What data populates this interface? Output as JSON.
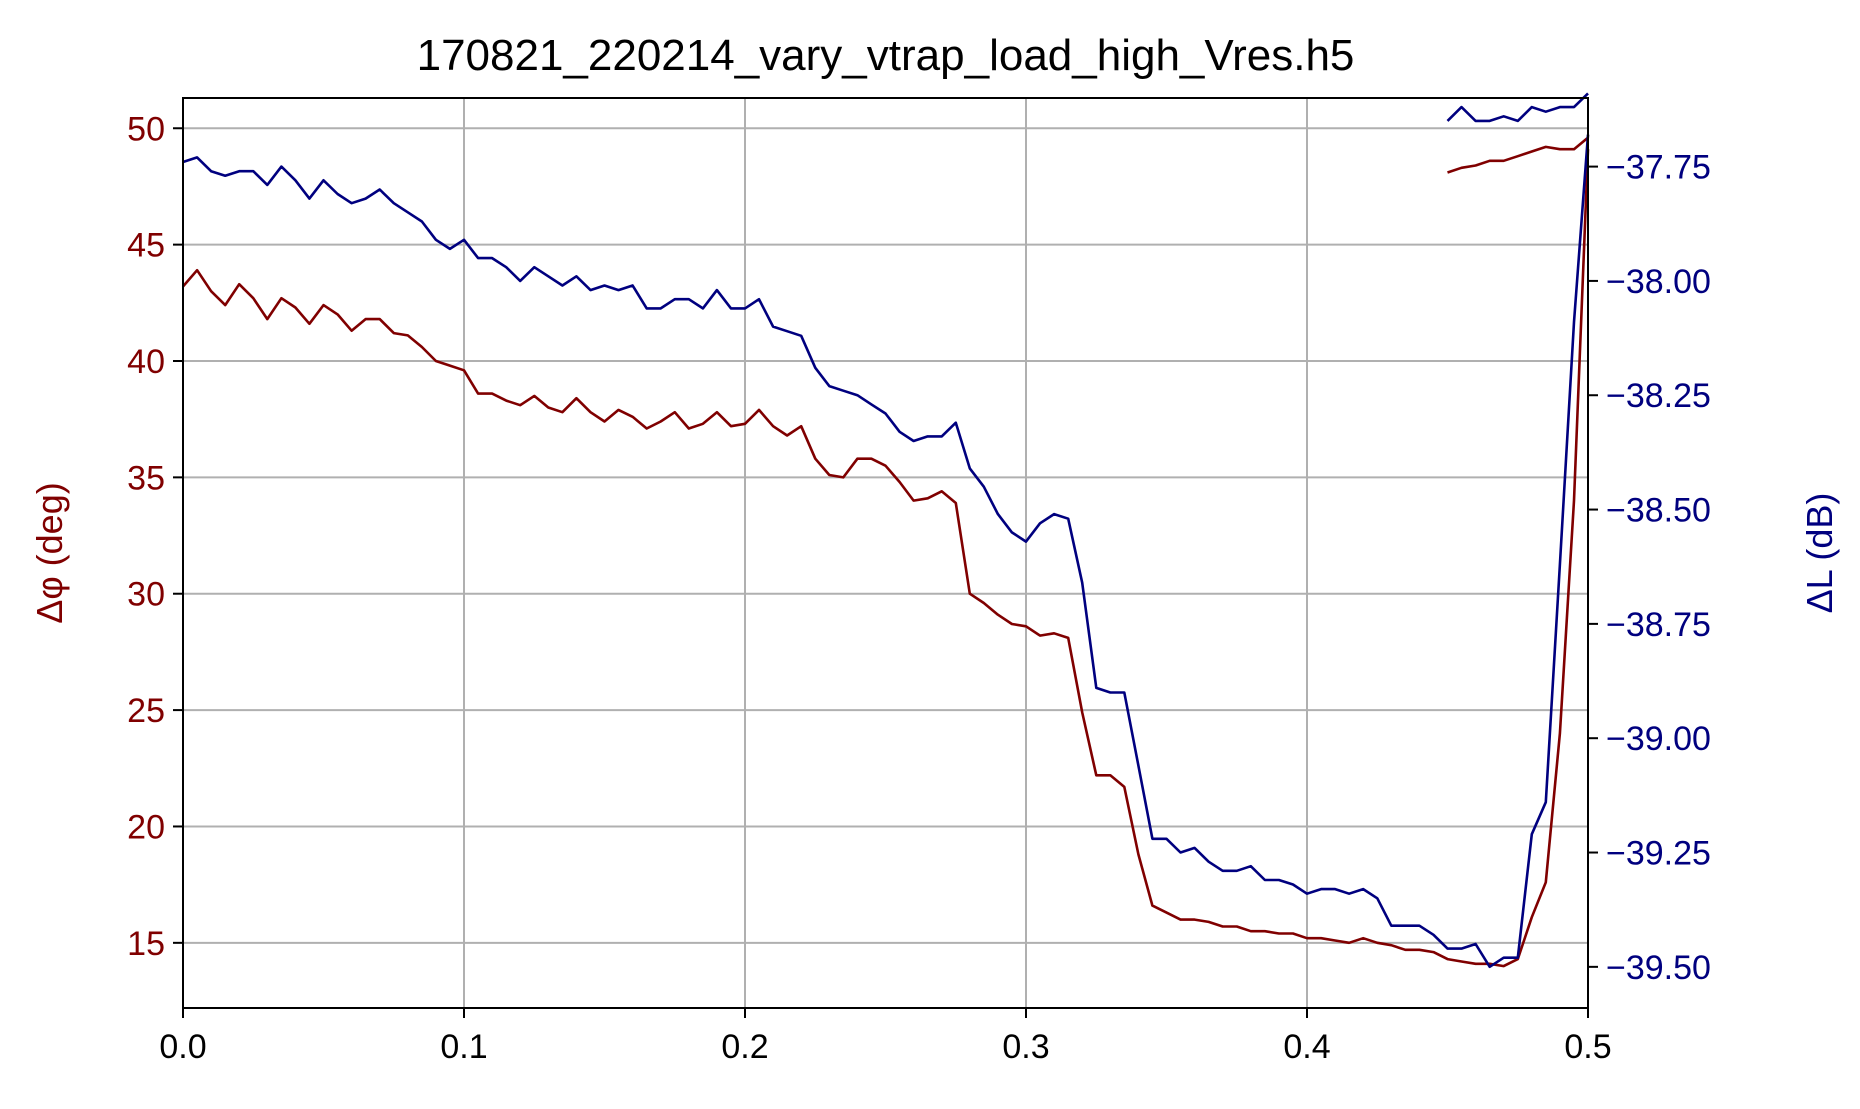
{
  "chart_data": {
    "type": "line",
    "title": "170821_220214_vary_vtrap_load_high_Vres.h5",
    "xlim": [
      0,
      0.5
    ],
    "xticks": [
      0.0,
      0.1,
      0.2,
      0.3,
      0.4,
      0.5
    ],
    "xtick_labels": [
      "0.0",
      "0.1",
      "0.2",
      "0.3",
      "0.4",
      "0.5"
    ],
    "grid": true,
    "left_axis": {
      "label": "Δφ (deg)",
      "color": "#800000",
      "ylim": [
        12.2,
        51.3
      ],
      "ticks": [
        15,
        20,
        25,
        30,
        35,
        40,
        45,
        50
      ],
      "tick_labels": [
        "15",
        "20",
        "25",
        "30",
        "35",
        "40",
        "45",
        "50"
      ]
    },
    "right_axis": {
      "label": "ΔL (dB)",
      "color": "#00007f",
      "ylim": [
        -39.59,
        -37.6
      ],
      "ticks": [
        -37.75,
        -38.0,
        -38.25,
        -38.5,
        -38.75,
        -39.0,
        -39.25,
        -39.5
      ],
      "tick_labels": [
        "−37.75",
        "−38.00",
        "−38.25",
        "−38.50",
        "−38.75",
        "−39.00",
        "−39.25",
        "−39.50"
      ]
    },
    "series": [
      {
        "axis": "left",
        "color": "#800000",
        "segments": [
          {
            "x": [
              0.0,
              0.005,
              0.01,
              0.015,
              0.02,
              0.025,
              0.03,
              0.035,
              0.04,
              0.045,
              0.05,
              0.055,
              0.06,
              0.065,
              0.07,
              0.075,
              0.08,
              0.085,
              0.09,
              0.095,
              0.1,
              0.105,
              0.11,
              0.115,
              0.12,
              0.125,
              0.13,
              0.135,
              0.14,
              0.145,
              0.15,
              0.155,
              0.16,
              0.165,
              0.17,
              0.175,
              0.18,
              0.185,
              0.19,
              0.195,
              0.2,
              0.205,
              0.21,
              0.215,
              0.22,
              0.225,
              0.23,
              0.235,
              0.24,
              0.245,
              0.25,
              0.255,
              0.26,
              0.265,
              0.27,
              0.275,
              0.28,
              0.285,
              0.29,
              0.295,
              0.3,
              0.305,
              0.31,
              0.315,
              0.32,
              0.325,
              0.33,
              0.335,
              0.34,
              0.345,
              0.35,
              0.355,
              0.36,
              0.365,
              0.37,
              0.375,
              0.38,
              0.385,
              0.39,
              0.395,
              0.4,
              0.405,
              0.41,
              0.415,
              0.42,
              0.425,
              0.43,
              0.435,
              0.44,
              0.445,
              0.45,
              0.455,
              0.46,
              0.465,
              0.47,
              0.475,
              0.48,
              0.485,
              0.49,
              0.495,
              0.5
            ],
            "y": [
              43.2,
              43.9,
              43.0,
              42.4,
              43.3,
              42.7,
              41.8,
              42.7,
              42.3,
              41.6,
              42.4,
              42.0,
              41.3,
              41.8,
              41.8,
              41.2,
              41.1,
              40.6,
              40.0,
              39.8,
              39.6,
              38.6,
              38.6,
              38.3,
              38.1,
              38.5,
              38.0,
              37.8,
              38.4,
              37.8,
              37.4,
              37.9,
              37.6,
              37.1,
              37.4,
              37.8,
              37.1,
              37.3,
              37.8,
              37.2,
              37.3,
              37.9,
              37.2,
              36.8,
              37.2,
              35.8,
              35.1,
              35.0,
              35.8,
              35.8,
              35.5,
              34.8,
              34.0,
              34.1,
              34.4,
              33.9,
              30.0,
              29.6,
              29.1,
              28.7,
              28.6,
              28.2,
              28.3,
              28.1,
              24.9,
              22.2,
              22.2,
              21.7,
              18.8,
              16.6,
              16.3,
              16.0,
              16.0,
              15.9,
              15.7,
              15.7,
              15.5,
              15.5,
              15.4,
              15.4,
              15.2,
              15.2,
              15.1,
              15.0,
              15.2,
              15.0,
              14.9,
              14.7,
              14.7,
              14.6,
              14.3,
              14.2,
              14.1,
              14.1,
              14.0,
              14.3,
              16.1,
              17.6,
              24.0,
              34.0,
              49.1
            ]
          },
          {
            "x": [
              0.45,
              0.455,
              0.46,
              0.465,
              0.47,
              0.475,
              0.48,
              0.485,
              0.49,
              0.495,
              0.5
            ],
            "y": [
              48.1,
              48.3,
              48.4,
              48.6,
              48.6,
              48.8,
              49.0,
              49.2,
              49.1,
              49.1,
              49.6
            ]
          }
        ]
      },
      {
        "axis": "right",
        "color": "#00007f",
        "segments": [
          {
            "x": [
              0.0,
              0.005,
              0.01,
              0.015,
              0.02,
              0.025,
              0.03,
              0.035,
              0.04,
              0.045,
              0.05,
              0.055,
              0.06,
              0.065,
              0.07,
              0.075,
              0.08,
              0.085,
              0.09,
              0.095,
              0.1,
              0.105,
              0.11,
              0.115,
              0.12,
              0.125,
              0.13,
              0.135,
              0.14,
              0.145,
              0.15,
              0.155,
              0.16,
              0.165,
              0.17,
              0.175,
              0.18,
              0.185,
              0.19,
              0.195,
              0.2,
              0.205,
              0.21,
              0.215,
              0.22,
              0.225,
              0.23,
              0.235,
              0.24,
              0.245,
              0.25,
              0.255,
              0.26,
              0.265,
              0.27,
              0.275,
              0.28,
              0.285,
              0.29,
              0.295,
              0.3,
              0.305,
              0.31,
              0.315,
              0.32,
              0.325,
              0.33,
              0.335,
              0.34,
              0.345,
              0.35,
              0.355,
              0.36,
              0.365,
              0.37,
              0.375,
              0.38,
              0.385,
              0.39,
              0.395,
              0.4,
              0.405,
              0.41,
              0.415,
              0.42,
              0.425,
              0.43,
              0.435,
              0.44,
              0.445,
              0.45,
              0.455,
              0.46,
              0.465,
              0.47,
              0.475,
              0.48,
              0.485,
              0.49,
              0.495,
              0.5
            ],
            "y": [
              -37.74,
              -37.73,
              -37.76,
              -37.77,
              -37.76,
              -37.76,
              -37.79,
              -37.75,
              -37.78,
              -37.82,
              -37.78,
              -37.81,
              -37.83,
              -37.82,
              -37.8,
              -37.83,
              -37.85,
              -37.87,
              -37.91,
              -37.93,
              -37.91,
              -37.95,
              -37.95,
              -37.97,
              -38.0,
              -37.97,
              -37.99,
              -38.01,
              -37.99,
              -38.02,
              -38.01,
              -38.02,
              -38.01,
              -38.06,
              -38.06,
              -38.04,
              -38.04,
              -38.06,
              -38.02,
              -38.06,
              -38.06,
              -38.04,
              -38.1,
              -38.11,
              -38.12,
              -38.19,
              -38.23,
              -38.24,
              -38.25,
              -38.27,
              -38.29,
              -38.33,
              -38.35,
              -38.34,
              -38.34,
              -38.31,
              -38.41,
              -38.45,
              -38.51,
              -38.55,
              -38.57,
              -38.53,
              -38.51,
              -38.52,
              -38.66,
              -38.89,
              -38.9,
              -38.9,
              -39.06,
              -39.22,
              -39.22,
              -39.25,
              -39.24,
              -39.27,
              -39.29,
              -39.29,
              -39.28,
              -39.31,
              -39.31,
              -39.32,
              -39.34,
              -39.33,
              -39.33,
              -39.34,
              -39.33,
              -39.35,
              -39.41,
              -39.41,
              -39.41,
              -39.43,
              -39.46,
              -39.46,
              -39.45,
              -39.5,
              -39.48,
              -39.48,
              -39.21,
              -39.14,
              -38.62,
              -38.09,
              -37.68
            ]
          },
          {
            "x": [
              0.45,
              0.455,
              0.46,
              0.465,
              0.47,
              0.475,
              0.48,
              0.485,
              0.49,
              0.495,
              0.5
            ],
            "y": [
              -37.65,
              -37.62,
              -37.65,
              -37.65,
              -37.64,
              -37.65,
              -37.62,
              -37.63,
              -37.62,
              -37.62,
              -37.59
            ]
          }
        ]
      }
    ]
  }
}
